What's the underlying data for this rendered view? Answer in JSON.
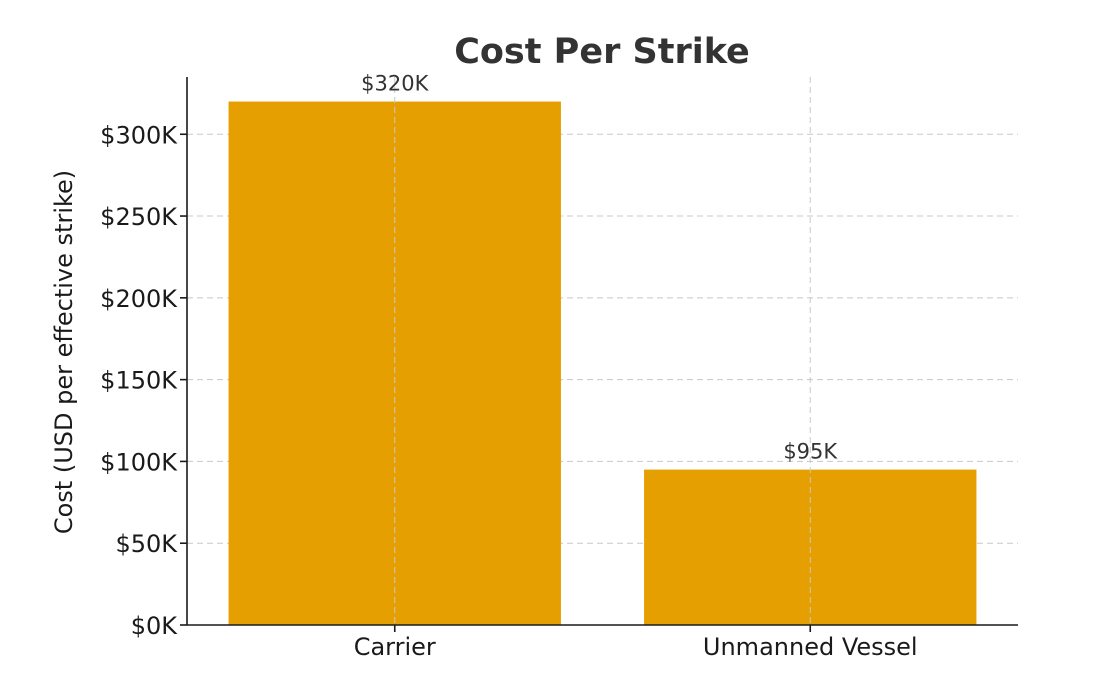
{
  "chart_data": {
    "type": "bar",
    "title": "Cost Per Strike",
    "xlabel": "",
    "ylabel": "Cost (USD per effective strike)",
    "categories": [
      "Carrier",
      "Unmanned Vessel"
    ],
    "values": [
      320000,
      95000
    ],
    "data_labels": [
      "$320K",
      "$95K"
    ],
    "ylim": [
      0,
      335000
    ],
    "yticks": [
      0,
      50000,
      100000,
      150000,
      200000,
      250000,
      300000
    ],
    "ytick_labels": [
      "$0K",
      "$50K",
      "$100K",
      "$150K",
      "$200K",
      "$250K",
      "$300K"
    ],
    "grid": true,
    "bar_color": "#E69F00"
  }
}
